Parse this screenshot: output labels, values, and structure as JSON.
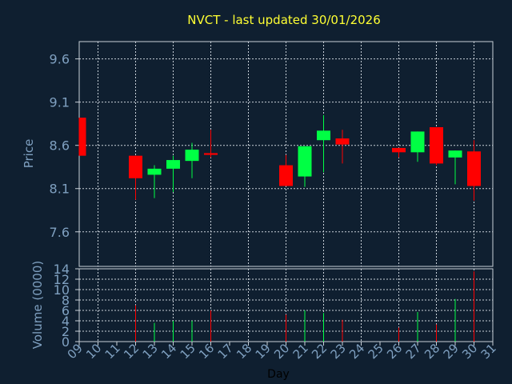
{
  "chart_data": [
    {
      "type": "candlestick",
      "title": "NVCT - last updated 30/01/2026",
      "ylabel": "Price",
      "ylim": [
        7.2,
        9.8
      ],
      "yticks": [
        "9.6",
        "9.1",
        "8.6",
        "8.1",
        "7.6"
      ],
      "ytick_values": [
        9.6,
        9.1,
        8.6,
        8.1,
        7.6
      ],
      "grid": true,
      "colors": {
        "up": "#00ff44",
        "down": "#ff0000",
        "background": "#0f1f30",
        "title": "#ffff33"
      },
      "candles": [
        {
          "x": "09",
          "open": 8.92,
          "close": 8.48,
          "high": 8.92,
          "low": 8.48
        },
        {
          "x": "12",
          "open": 8.48,
          "close": 8.22,
          "high": 8.48,
          "low": 7.97
        },
        {
          "x": "13",
          "open": 8.26,
          "close": 8.33,
          "high": 8.37,
          "low": 7.99
        },
        {
          "x": "14",
          "open": 8.33,
          "close": 8.43,
          "high": 8.48,
          "low": 8.06
        },
        {
          "x": "15",
          "open": 8.42,
          "close": 8.55,
          "high": 8.63,
          "low": 8.22
        },
        {
          "x": "16",
          "open": 8.51,
          "close": 8.49,
          "high": 8.78,
          "low": 8.46
        },
        {
          "x": "20",
          "open": 8.37,
          "close": 8.13,
          "high": 8.49,
          "low": 8.13
        },
        {
          "x": "21",
          "open": 8.24,
          "close": 8.59,
          "high": 8.59,
          "low": 8.12
        },
        {
          "x": "22",
          "open": 8.66,
          "close": 8.77,
          "high": 8.95,
          "low": 8.29
        },
        {
          "x": "23",
          "open": 8.68,
          "close": 8.61,
          "high": 8.78,
          "low": 8.39
        },
        {
          "x": "26",
          "open": 8.57,
          "close": 8.52,
          "high": 8.57,
          "low": 8.46
        },
        {
          "x": "27",
          "open": 8.52,
          "close": 8.76,
          "high": 8.76,
          "low": 8.41
        },
        {
          "x": "28",
          "open": 8.81,
          "close": 8.39,
          "high": 8.81,
          "low": 8.37
        },
        {
          "x": "29",
          "open": 8.46,
          "close": 8.54,
          "high": 8.54,
          "low": 8.15
        },
        {
          "x": "30",
          "open": 8.53,
          "close": 8.13,
          "high": 8.66,
          "low": 7.96
        }
      ]
    },
    {
      "type": "bar",
      "ylabel": "Volume (0000)",
      "xlabel": "Day",
      "ylim": [
        0,
        14
      ],
      "yticks": [
        "14",
        "12",
        "10",
        "8",
        "6",
        "4",
        "2",
        "0"
      ],
      "ytick_values": [
        14,
        12,
        10,
        8,
        6,
        4,
        2,
        0
      ],
      "categories": [
        "09",
        "10",
        "11",
        "12",
        "13",
        "14",
        "15",
        "16",
        "17",
        "18",
        "19",
        "20",
        "21",
        "22",
        "23",
        "24",
        "25",
        "26",
        "27",
        "28",
        "29",
        "30",
        "31"
      ],
      "volumes": [
        {
          "x": "12",
          "value": 7.0,
          "direction": "down"
        },
        {
          "x": "13",
          "value": 3.6,
          "direction": "up"
        },
        {
          "x": "14",
          "value": 4.0,
          "direction": "up"
        },
        {
          "x": "15",
          "value": 4.0,
          "direction": "up"
        },
        {
          "x": "16",
          "value": 6.0,
          "direction": "down"
        },
        {
          "x": "20",
          "value": 5.2,
          "direction": "down"
        },
        {
          "x": "21",
          "value": 6.0,
          "direction": "up"
        },
        {
          "x": "22",
          "value": 5.5,
          "direction": "up"
        },
        {
          "x": "23",
          "value": 4.2,
          "direction": "down"
        },
        {
          "x": "26",
          "value": 2.7,
          "direction": "down"
        },
        {
          "x": "27",
          "value": 5.7,
          "direction": "up"
        },
        {
          "x": "28",
          "value": 3.3,
          "direction": "down"
        },
        {
          "x": "29",
          "value": 8.2,
          "direction": "up"
        },
        {
          "x": "30",
          "value": 13.5,
          "direction": "down"
        }
      ]
    }
  ]
}
